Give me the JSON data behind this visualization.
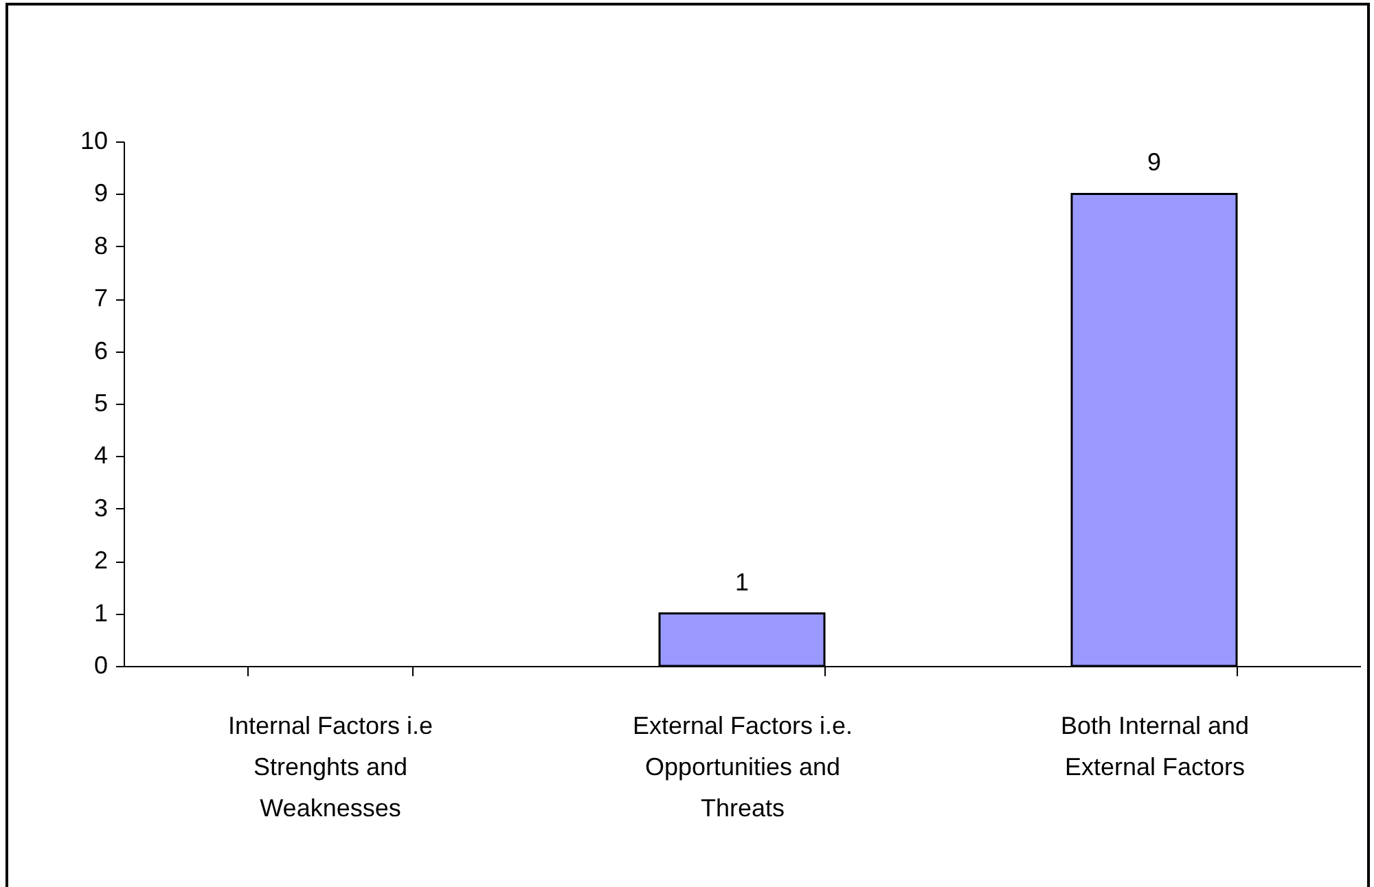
{
  "chart_data": {
    "type": "bar",
    "categories": [
      "Internal Factors i.e Strenghts and Weaknesses",
      "External Factors i.e. Opportunities and Threats",
      "Both Internal and External Factors"
    ],
    "values": [
      0,
      1,
      9
    ],
    "color": "#9999ff",
    "value_labels": [
      null,
      "1",
      "9"
    ],
    "ylim": [
      0,
      10
    ],
    "yticks": [
      0,
      1,
      2,
      3,
      4,
      5,
      6,
      7,
      8,
      9,
      10
    ],
    "grid": false
  }
}
